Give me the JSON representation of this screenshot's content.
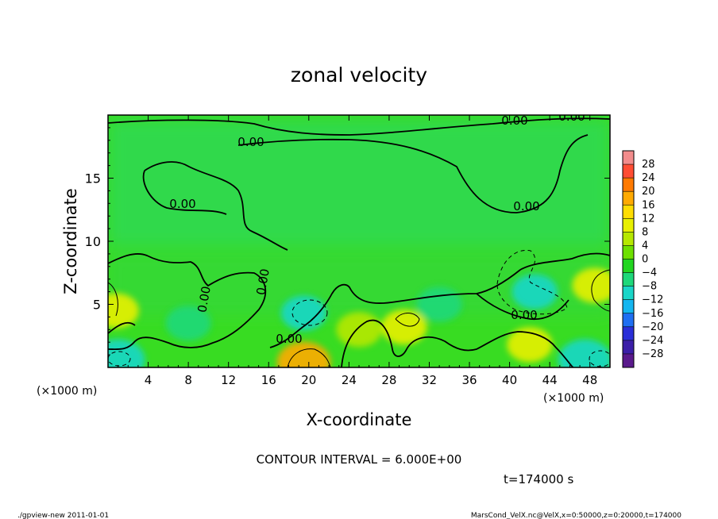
{
  "chart_data": {
    "type": "heatmap",
    "title": "zonal velocity",
    "xlabel": "X-coordinate",
    "ylabel": "Z-coordinate",
    "x_unit_label": "(×1000 m)",
    "y_unit_label": "(×1000 m)",
    "xlim": [
      0,
      50
    ],
    "ylim": [
      0,
      20
    ],
    "x_ticks": [
      4,
      8,
      12,
      16,
      20,
      24,
      28,
      32,
      36,
      40,
      44,
      48
    ],
    "y_ticks": [
      5,
      10,
      15
    ],
    "contour_interval_text": "CONTOUR INTERVAL = 6.000E+00",
    "time_text": "t=174000 s",
    "contour_labels": [
      "0.00",
      "0.00",
      "0.00",
      "0.00",
      "0.00",
      "0.00",
      "0.00",
      "0.00",
      "0.00"
    ],
    "colorbar": {
      "levels": [
        28,
        24,
        20,
        16,
        12,
        8,
        4,
        0,
        -4,
        -8,
        -12,
        -16,
        -20,
        -24,
        -28
      ],
      "colors": [
        "#f28c8c",
        "#ff4d33",
        "#ff7a00",
        "#ffaa00",
        "#ffdd00",
        "#e8f000",
        "#b6e800",
        "#6ee000",
        "#22d620",
        "#1ed87a",
        "#1ad6c8",
        "#14b6f0",
        "#1f6ff2",
        "#2a2fd8",
        "#3c1fa8",
        "#5a1a8c"
      ]
    },
    "features": [
      {
        "name": "jet-orange",
        "x": 19.5,
        "z": 0.4,
        "value": 16
      },
      {
        "name": "warm-yellow-left",
        "x": 0.8,
        "z": 4.5,
        "value": 10
      },
      {
        "name": "warm-yellow-right",
        "x": 48.5,
        "z": 6.5,
        "value": 10
      },
      {
        "name": "warm-1",
        "x": 29.5,
        "z": 3.2,
        "value": 8
      },
      {
        "name": "warm-2",
        "x": 42,
        "z": 1.8,
        "value": 8
      },
      {
        "name": "warm-3",
        "x": 25,
        "z": 3.0,
        "value": 6
      },
      {
        "name": "cool-cyan-1",
        "x": 19.5,
        "z": 4.3,
        "value": -10
      },
      {
        "name": "cool-cyan-2",
        "x": 42.5,
        "z": 6.0,
        "value": -10
      },
      {
        "name": "cool-cyan-3",
        "x": 47.5,
        "z": 0.6,
        "value": -12
      },
      {
        "name": "cool-cyan-4",
        "x": 1.0,
        "z": 0.6,
        "value": -12
      },
      {
        "name": "cool-1",
        "x": 8,
        "z": 3.5,
        "value": -6
      },
      {
        "name": "cool-2",
        "x": 33,
        "z": 5.0,
        "value": -6
      }
    ]
  },
  "footer": {
    "left": "./gpview-new  2011-01-01",
    "right": "MarsCond_VelX.nc@VelX,x=0:50000,z=0:20000,t=174000"
  }
}
